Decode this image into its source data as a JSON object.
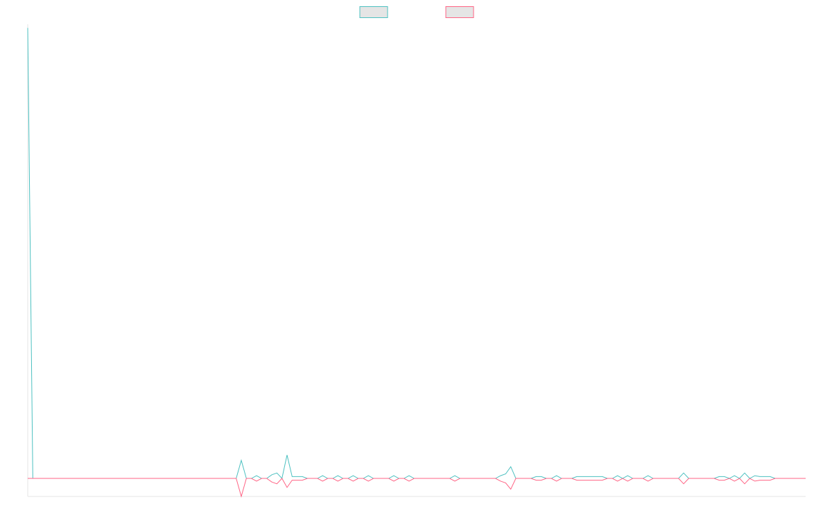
{
  "chart_data": {
    "type": "line",
    "legend": "top",
    "ylim": [
      -1,
      25.2
    ],
    "series": [
      {
        "color": "#4bc0c0",
        "values": [
          25,
          0,
          0,
          0,
          0,
          0,
          0,
          0,
          0,
          0,
          0,
          0,
          0,
          0,
          0,
          0,
          0,
          0,
          0,
          0,
          0,
          0,
          0,
          0,
          0,
          0,
          0,
          0,
          0,
          0,
          0,
          0,
          0,
          0,
          0,
          0,
          0,
          0,
          0,
          0,
          0,
          0,
          1,
          0,
          0,
          0.15,
          0,
          0,
          0.2,
          0.3,
          0,
          1.3,
          0.1,
          0.1,
          0.1,
          0,
          0,
          0,
          0.15,
          0,
          0,
          0.15,
          0,
          0,
          0.15,
          0,
          0,
          0.15,
          0,
          0,
          0,
          0,
          0.15,
          0,
          0,
          0.15,
          0,
          0,
          0,
          0,
          0,
          0,
          0,
          0,
          0.15,
          0,
          0,
          0,
          0,
          0,
          0,
          0,
          0,
          0.15,
          0.25,
          0.65,
          0,
          0,
          0,
          0,
          0.1,
          0.1,
          0,
          0,
          0.15,
          0,
          0,
          0,
          0.1,
          0.1,
          0.1,
          0.1,
          0.1,
          0.1,
          0,
          0,
          0.15,
          0,
          0.15,
          0,
          0,
          0,
          0.15,
          0,
          0,
          0,
          0,
          0,
          0,
          0.3,
          0,
          0,
          0,
          0,
          0,
          0,
          0.1,
          0.1,
          0,
          0.15,
          0,
          0.3,
          0,
          0.15,
          0.1,
          0.1,
          0.1,
          0,
          0,
          0,
          0,
          0,
          0,
          0
        ]
      },
      {
        "color": "#ff6384",
        "values": [
          0,
          0,
          0,
          0,
          0,
          0,
          0,
          0,
          0,
          0,
          0,
          0,
          0,
          0,
          0,
          0,
          0,
          0,
          0,
          0,
          0,
          0,
          0,
          0,
          0,
          0,
          0,
          0,
          0,
          0,
          0,
          0,
          0,
          0,
          0,
          0,
          0,
          0,
          0,
          0,
          0,
          0,
          -1,
          0,
          0,
          -0.15,
          0,
          0,
          -0.2,
          -0.3,
          0,
          -0.5,
          -0.1,
          -0.1,
          -0.1,
          0,
          0,
          0,
          -0.15,
          0,
          0,
          -0.15,
          0,
          0,
          -0.15,
          0,
          0,
          -0.15,
          0,
          0,
          0,
          0,
          -0.15,
          0,
          0,
          -0.15,
          0,
          0,
          0,
          0,
          0,
          0,
          0,
          0,
          -0.15,
          0,
          0,
          0,
          0,
          0,
          0,
          0,
          0,
          -0.15,
          -0.25,
          -0.6,
          0,
          0,
          0,
          0,
          -0.1,
          -0.1,
          0,
          0,
          -0.15,
          0,
          0,
          0,
          -0.1,
          -0.1,
          -0.1,
          -0.1,
          -0.1,
          -0.1,
          0,
          0,
          -0.15,
          0,
          -0.15,
          0,
          0,
          0,
          -0.15,
          0,
          0,
          0,
          0,
          0,
          0,
          -0.3,
          0,
          0,
          0,
          0,
          0,
          0,
          -0.1,
          -0.1,
          0,
          -0.15,
          0,
          -0.3,
          0,
          -0.15,
          -0.1,
          -0.1,
          -0.1,
          0,
          0,
          0,
          0,
          0,
          0,
          0
        ]
      }
    ]
  }
}
